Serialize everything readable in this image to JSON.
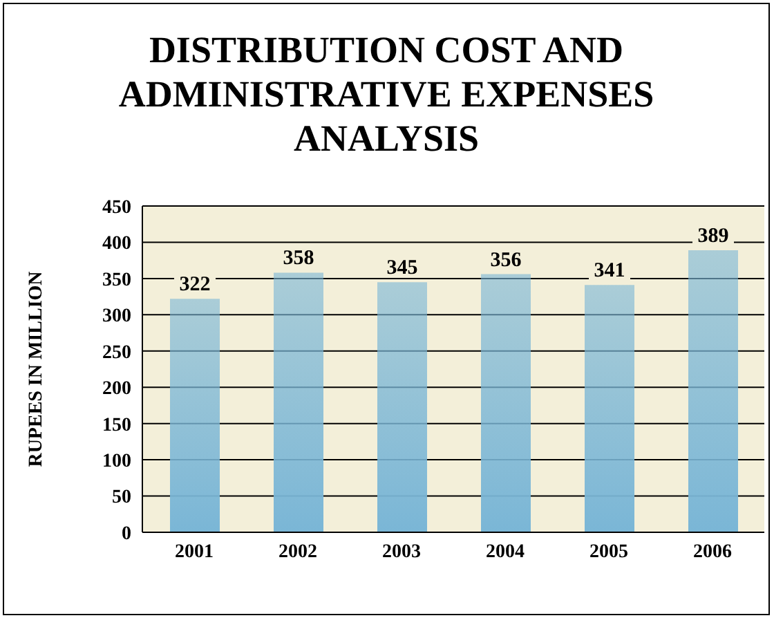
{
  "chart_data": {
    "type": "bar",
    "title": "DISTRIBUTION COST AND ADMINISTRATIVE EXPENSES ANALYSIS",
    "ylabel": "RUPEES IN MILLION",
    "categories": [
      "2001",
      "2002",
      "2003",
      "2004",
      "2005",
      "2006"
    ],
    "values": [
      322,
      358,
      345,
      356,
      341,
      389
    ],
    "color": "#7ab6d6",
    "ylim": [
      0,
      450
    ],
    "yticks": [
      0,
      50,
      100,
      150,
      200,
      250,
      300,
      350,
      400,
      450
    ],
    "grid": "y",
    "data_labels": true
  }
}
